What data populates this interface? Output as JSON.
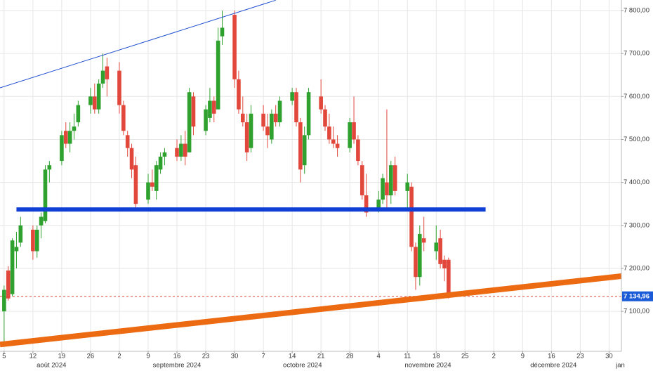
{
  "chart_data": {
    "type": "candlestick",
    "up_color": "#2ea12e",
    "down_color": "#e2473c",
    "xlim": [
      "2024-08-04",
      "2025-01-02"
    ],
    "ylim": [
      7007,
      7824.5
    ],
    "yticks": [
      {
        "value": 7100,
        "label": "7 100,00"
      },
      {
        "value": 7200,
        "label": "7 200,00"
      },
      {
        "value": 7300,
        "label": "7 300,00"
      },
      {
        "value": 7400,
        "label": "7 400,00"
      },
      {
        "value": 7500,
        "label": "7 500,00"
      },
      {
        "value": 7600,
        "label": "7 600,00"
      },
      {
        "value": 7700,
        "label": "7 700,00"
      },
      {
        "value": 7800,
        "label": "7 800,00"
      }
    ],
    "xticks": [
      {
        "value": "2024-08-05",
        "label": "5"
      },
      {
        "value": "2024-08-12",
        "label": "12"
      },
      {
        "value": "2024-08-19",
        "label": "19"
      },
      {
        "value": "2024-08-26",
        "label": "26"
      },
      {
        "value": "2024-09-02",
        "label": "2"
      },
      {
        "value": "2024-09-09",
        "label": "9"
      },
      {
        "value": "2024-09-16",
        "label": "16"
      },
      {
        "value": "2024-09-23",
        "label": "23"
      },
      {
        "value": "2024-09-30",
        "label": "30"
      },
      {
        "value": "2024-10-07",
        "label": "7"
      },
      {
        "value": "2024-10-14",
        "label": "14"
      },
      {
        "value": "2024-10-21",
        "label": "21"
      },
      {
        "value": "2024-10-28",
        "label": "28"
      },
      {
        "value": "2024-11-04",
        "label": "4"
      },
      {
        "value": "2024-11-11",
        "label": "11"
      },
      {
        "value": "2024-11-18",
        "label": "18"
      },
      {
        "value": "2024-11-25",
        "label": "25"
      },
      {
        "value": "2024-12-02",
        "label": "2"
      },
      {
        "value": "2024-12-09",
        "label": "9"
      },
      {
        "value": "2024-12-16",
        "label": "16"
      },
      {
        "value": "2024-12-23",
        "label": "23"
      },
      {
        "value": "2024-12-30",
        "label": "30"
      }
    ],
    "months": [
      {
        "value": "2024-08",
        "label": "août 2024"
      },
      {
        "value": "2024-09",
        "label": "septembre 2024"
      },
      {
        "value": "2024-10",
        "label": "octobre 2024"
      },
      {
        "value": "2024-11",
        "label": "novembre 2024"
      },
      {
        "value": "2024-12",
        "label": "décembre 2024"
      },
      {
        "value": "2025-01",
        "label": "jan"
      }
    ],
    "grid": true,
    "x": [
      "2024-08-05",
      "2024-08-06",
      "2024-08-07",
      "2024-08-08",
      "2024-08-09",
      "2024-08-12",
      "2024-08-13",
      "2024-08-14",
      "2024-08-15",
      "2024-08-16",
      "2024-08-19",
      "2024-08-20",
      "2024-08-21",
      "2024-08-22",
      "2024-08-23",
      "2024-08-26",
      "2024-08-27",
      "2024-08-28",
      "2024-08-29",
      "2024-08-30",
      "2024-09-02",
      "2024-09-03",
      "2024-09-04",
      "2024-09-05",
      "2024-09-06",
      "2024-09-09",
      "2024-09-10",
      "2024-09-11",
      "2024-09-12",
      "2024-09-13",
      "2024-09-16",
      "2024-09-17",
      "2024-09-18",
      "2024-09-19",
      "2024-09-20",
      "2024-09-23",
      "2024-09-24",
      "2024-09-25",
      "2024-09-26",
      "2024-09-27",
      "2024-09-30",
      "2024-10-01",
      "2024-10-02",
      "2024-10-03",
      "2024-10-04",
      "2024-10-07",
      "2024-10-08",
      "2024-10-09",
      "2024-10-10",
      "2024-10-11",
      "2024-10-14",
      "2024-10-15",
      "2024-10-16",
      "2024-10-17",
      "2024-10-18",
      "2024-10-21",
      "2024-10-22",
      "2024-10-23",
      "2024-10-24",
      "2024-10-25",
      "2024-10-28",
      "2024-10-29",
      "2024-10-30",
      "2024-10-31",
      "2024-11-01",
      "2024-11-04",
      "2024-11-05",
      "2024-11-06",
      "2024-11-07",
      "2024-11-08",
      "2024-11-11",
      "2024-11-12",
      "2024-11-13",
      "2024-11-14",
      "2024-11-15",
      "2024-11-18",
      "2024-11-19",
      "2024-11-20",
      "2024-11-21"
    ],
    "open": [
      7100,
      7195,
      7140,
      7240,
      7260,
      7290,
      7240,
      7300,
      7310,
      7430,
      7450,
      7520,
      7490,
      7520,
      7540,
      7580,
      7600,
      7570,
      7630,
      7670,
      7660,
      7580,
      7510,
      7480,
      7440,
      7360,
      7400,
      7380,
      7430,
      7460,
      7480,
      7460,
      7490,
      7470,
      7600,
      7520,
      7550,
      7590,
      7570,
      7740,
      7790,
      7640,
      7560,
      7540,
      7480,
      7560,
      7530,
      7500,
      7560,
      7540,
      7590,
      7610,
      7540,
      7440,
      7510,
      7600,
      7570,
      7530,
      7500,
      7490,
      7480,
      7540,
      7500,
      7440,
      7370,
      7340,
      7360,
      7400,
      7370,
      7440,
      7380,
      7390,
      7250,
      7180,
      7270,
      7240,
      7270,
      7220,
      7220
    ],
    "high": [
      7160,
      7205,
      7270,
      7285,
      7320,
      7300,
      7300,
      7330,
      7440,
      7450,
      7520,
      7540,
      7540,
      7560,
      7590,
      7620,
      7630,
      7640,
      7700,
      7690,
      7680,
      7590,
      7520,
      7490,
      7460,
      7420,
      7430,
      7450,
      7470,
      7480,
      7500,
      7510,
      7520,
      7620,
      7610,
      7580,
      7620,
      7600,
      7760,
      7800,
      7800,
      7660,
      7600,
      7560,
      7580,
      7580,
      7560,
      7570,
      7580,
      7600,
      7620,
      7620,
      7550,
      7530,
      7620,
      7640,
      7580,
      7560,
      7530,
      7510,
      7550,
      7600,
      7510,
      7450,
      7420,
      7380,
      7420,
      7570,
      7450,
      7460,
      7420,
      7400,
      7260,
      7300,
      7320,
      7300,
      7290,
      7230,
      7225
    ],
    "low": [
      7030,
      7125,
      7135,
      7200,
      7250,
      7220,
      7225,
      7270,
      7305,
      7400,
      7440,
      7480,
      7470,
      7500,
      7530,
      7560,
      7560,
      7560,
      7620,
      7600,
      7560,
      7510,
      7460,
      7410,
      7340,
      7350,
      7380,
      7360,
      7420,
      7440,
      7450,
      7450,
      7440,
      7470,
      7510,
      7510,
      7540,
      7540,
      7570,
      7720,
      7620,
      7560,
      7530,
      7450,
      7470,
      7520,
      7480,
      7490,
      7530,
      7530,
      7580,
      7530,
      7400,
      7420,
      7500,
      7560,
      7520,
      7490,
      7480,
      7460,
      7470,
      7490,
      7440,
      7360,
      7320,
      7330,
      7350,
      7340,
      7350,
      7370,
      7340,
      7240,
      7150,
      7160,
      7240,
      7220,
      7200,
      7170,
      7130
    ],
    "close": [
      7150,
      7130,
      7265,
      7250,
      7300,
      7240,
      7290,
      7320,
      7430,
      7440,
      7510,
      7490,
      7520,
      7530,
      7580,
      7600,
      7570,
      7630,
      7660,
      7640,
      7580,
      7520,
      7480,
      7430,
      7350,
      7400,
      7390,
      7440,
      7460,
      7470,
      7460,
      7490,
      7460,
      7610,
      7530,
      7570,
      7590,
      7560,
      7730,
      7760,
      7640,
      7570,
      7540,
      7470,
      7560,
      7530,
      7510,
      7560,
      7540,
      7590,
      7610,
      7540,
      7430,
      7510,
      7610,
      7570,
      7530,
      7500,
      7490,
      7480,
      7540,
      7500,
      7450,
      7370,
      7330,
      7360,
      7410,
      7370,
      7440,
      7380,
      7400,
      7250,
      7180,
      7280,
      7260,
      7260,
      7210,
      7200,
      7135
    ],
    "last_price": {
      "value": 7134.96,
      "label": "7 134,96"
    },
    "last_color": "#e2473c",
    "label_color": "#1c5bd8",
    "trendlines": [
      {
        "color": "#2050d0",
        "width": 1,
        "x": [
          "2024-08-04",
          "2024-10-10"
        ],
        "values": [
          7620,
          7824
        ]
      },
      {
        "color": "#0f3fd4",
        "width": 6,
        "x": [
          "2024-08-08",
          "2024-11-30"
        ],
        "values": [
          7337,
          7337
        ]
      },
      {
        "color": "#ec6a12",
        "width": 8,
        "x": [
          "2024-08-04",
          "2025-01-02"
        ],
        "values": [
          7023,
          7182
        ]
      }
    ]
  }
}
